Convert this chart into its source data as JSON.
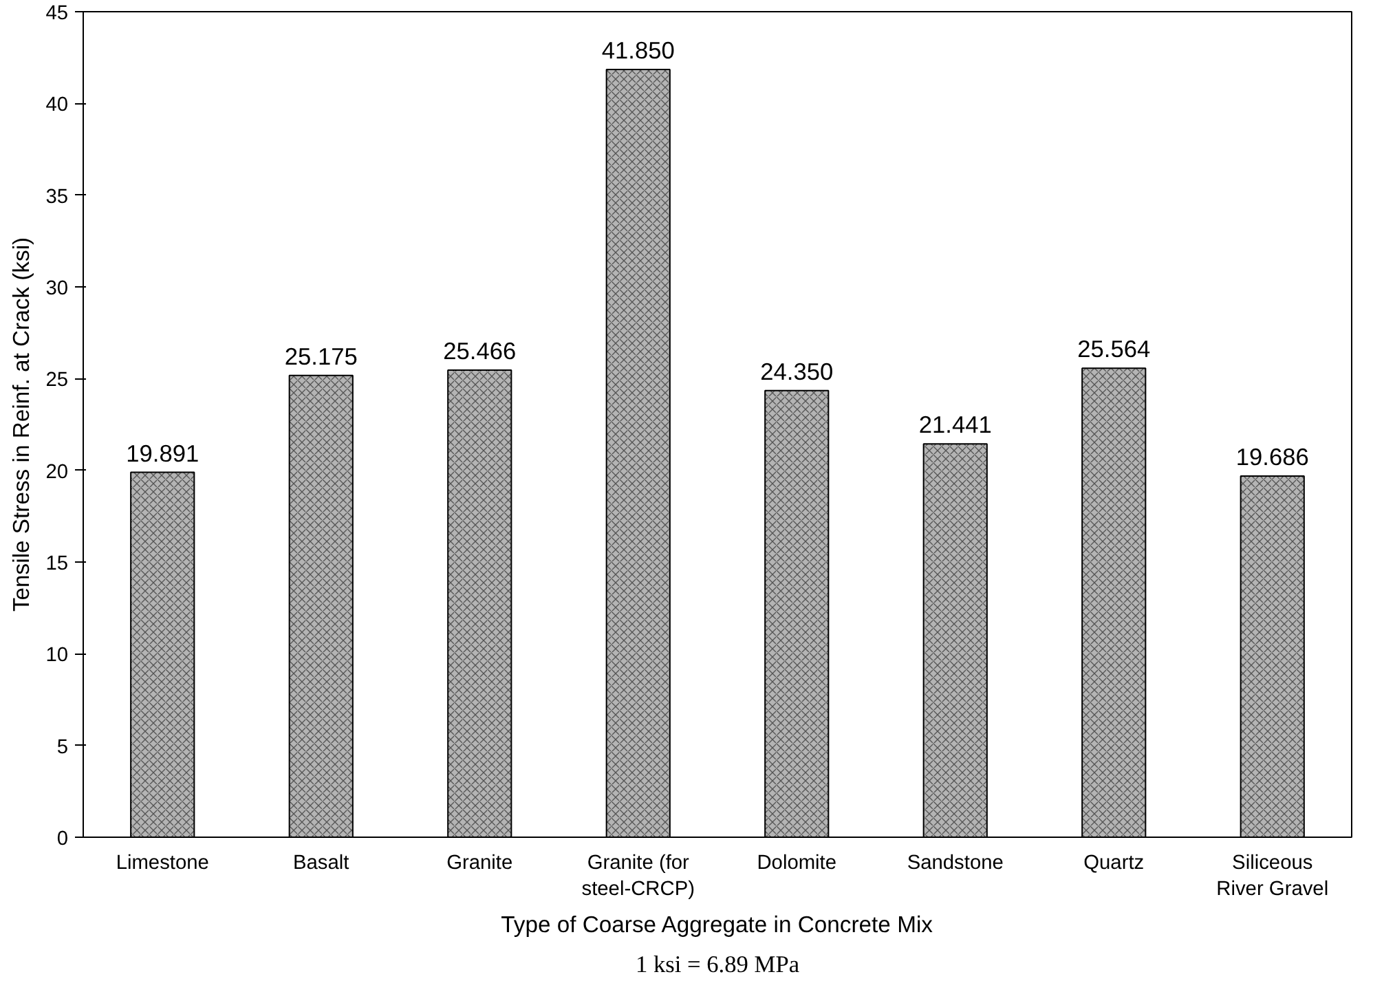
{
  "chart_data": {
    "type": "bar",
    "xlabel": "Type of Coarse Aggregate in Concrete Mix",
    "ylabel": "Tensile Stress in Reinf. at Crack (ksi)",
    "categories": [
      "Limestone",
      "Basalt",
      "Granite",
      "Granite (for steel-CRCP)",
      "Dolomite",
      "Sandstone",
      "Quartz",
      "Siliceous River Gravel"
    ],
    "values": [
      19.891,
      25.175,
      25.466,
      41.85,
      24.35,
      21.441,
      25.564,
      19.686
    ],
    "value_labels": [
      "19.891",
      "25.175",
      "25.466",
      "41.850",
      "24.350",
      "21.441",
      "25.564",
      "19.686"
    ],
    "color": "#b4b4b4",
    "ylim": [
      0,
      45
    ],
    "yticks": [
      0,
      5,
      10,
      15,
      20,
      25,
      30,
      35,
      40,
      45
    ],
    "grid": false,
    "annotations": [
      "1 ksi = 6.89 MPa"
    ]
  }
}
